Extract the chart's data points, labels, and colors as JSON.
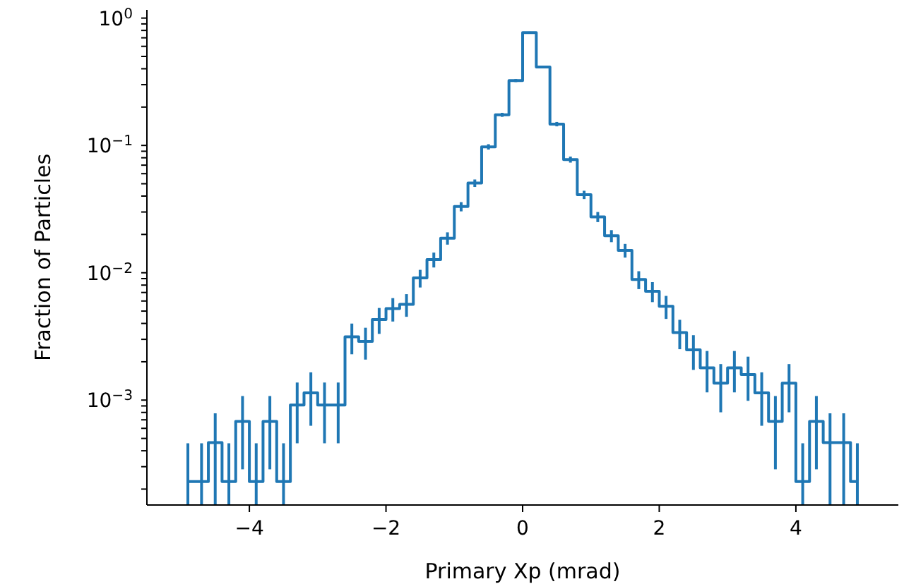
{
  "chart_data": {
    "type": "step",
    "xlabel": "Primary Xp (mrad)",
    "ylabel": "Fraction of Particles",
    "x": [
      -4.9,
      -4.7,
      -4.5,
      -4.3,
      -4.1,
      -3.9,
      -3.7,
      -3.5,
      -3.3,
      -3.1,
      -2.9,
      -2.7,
      -2.5,
      -2.3,
      -2.1,
      -1.9,
      -1.7,
      -1.5,
      -1.3,
      -1.1,
      -0.9,
      -0.7,
      -0.5,
      -0.3,
      -0.1,
      0.1,
      0.3,
      0.5,
      0.7,
      0.9,
      1.1,
      1.3,
      1.5,
      1.7,
      1.9,
      2.1,
      2.3,
      2.5,
      2.7,
      2.9,
      3.1,
      3.3,
      3.5,
      3.7,
      3.9,
      4.1,
      4.3,
      4.5,
      4.7,
      4.9
    ],
    "values": [
      0.000229,
      0.000229,
      0.000464,
      0.000229,
      0.000681,
      0.000229,
      0.000681,
      0.000229,
      0.000916,
      0.00114,
      0.000916,
      0.000916,
      0.00314,
      0.00289,
      0.0043,
      0.00523,
      0.00565,
      0.0091,
      0.0127,
      0.0187,
      0.0331,
      0.0506,
      0.0975,
      0.174,
      0.323,
      0.769,
      0.413,
      0.147,
      0.0775,
      0.041,
      0.0275,
      0.0195,
      0.015,
      0.00886,
      0.00716,
      0.00546,
      0.00339,
      0.00248,
      0.00179,
      0.00136,
      0.00179,
      0.00159,
      0.00114,
      0.000681,
      0.00136,
      0.000229,
      0.000681,
      0.000464,
      0.000464,
      0.000229
    ],
    "errors": [
      [
        0.00015,
        0.000458
      ],
      [
        0.00015,
        0.000458
      ],
      [
        0.00015,
        0.000788
      ],
      [
        0.00015,
        0.000458
      ],
      0.000395,
      [
        0.00015,
        0.000458
      ],
      0.000395,
      [
        0.00015,
        0.000458
      ],
      0.000458,
      0.000511,
      0.000458,
      0.000458,
      0.00085,
      0.00081,
      0.00099,
      0.00109,
      0.00114,
      0.00144,
      0.0017,
      0.00207,
      0.00275,
      0.0034,
      0.0047,
      0.0063,
      0.0086,
      0.0133,
      0.0097,
      0.0058,
      0.0042,
      0.00306,
      0.0025,
      0.00211,
      0.00185,
      0.00142,
      0.00128,
      0.00112,
      0.00088,
      0.000754,
      0.00064,
      0.000558,
      0.00064,
      0.000603,
      0.000511,
      0.000395,
      0.000558,
      [
        0.00015,
        0.000458
      ],
      0.000395,
      [
        0.00015,
        0.000788
      ],
      [
        0.00015,
        0.000788
      ],
      [
        0.00015,
        0.000458
      ]
    ],
    "color": "#1f77b4",
    "log": "y",
    "xlim": [
      -5.5,
      5.5
    ],
    "xticks": [
      {
        "value": -4,
        "label": "−4"
      },
      {
        "value": -2,
        "label": "−2"
      },
      {
        "value": 0,
        "label": "0"
      },
      {
        "value": 2,
        "label": "2"
      },
      {
        "value": 4,
        "label": "4"
      }
    ],
    "ylim": [
      0.00015,
      1.16
    ],
    "yticks": [
      {
        "value": 0.0002,
        "label": null
      },
      {
        "value": 0.0003,
        "label": null
      },
      {
        "value": 0.0004,
        "label": null
      },
      {
        "value": 0.0005,
        "label": null
      },
      {
        "value": 0.0006,
        "label": null
      },
      {
        "value": 0.0007,
        "label": null
      },
      {
        "value": 0.0008,
        "label": null
      },
      {
        "value": 0.0009,
        "label": null
      },
      {
        "value": 0.001,
        "label": "10$^{−3}$"
      },
      {
        "value": 0.002,
        "label": null
      },
      {
        "value": 0.003,
        "label": null
      },
      {
        "value": 0.004,
        "label": null
      },
      {
        "value": 0.005,
        "label": null
      },
      {
        "value": 0.006,
        "label": null
      },
      {
        "value": 0.007,
        "label": null
      },
      {
        "value": 0.008,
        "label": null
      },
      {
        "value": 0.009,
        "label": null
      },
      {
        "value": 0.01,
        "label": "10$^{−2}$"
      },
      {
        "value": 0.02,
        "label": null
      },
      {
        "value": 0.03,
        "label": null
      },
      {
        "value": 0.04,
        "label": null
      },
      {
        "value": 0.05,
        "label": null
      },
      {
        "value": 0.06,
        "label": null
      },
      {
        "value": 0.07,
        "label": null
      },
      {
        "value": 0.08,
        "label": null
      },
      {
        "value": 0.09,
        "label": null
      },
      {
        "value": 0.1,
        "label": "10$^{−1}$"
      },
      {
        "value": 0.2,
        "label": null
      },
      {
        "value": 0.3,
        "label": null
      },
      {
        "value": 0.4,
        "label": null
      },
      {
        "value": 0.5,
        "label": null
      },
      {
        "value": 0.6,
        "label": null
      },
      {
        "value": 0.7,
        "label": null
      },
      {
        "value": 0.8,
        "label": null
      },
      {
        "value": 0.9,
        "label": null
      },
      {
        "value": 1,
        "label": "10$^{0}$"
      }
    ]
  }
}
